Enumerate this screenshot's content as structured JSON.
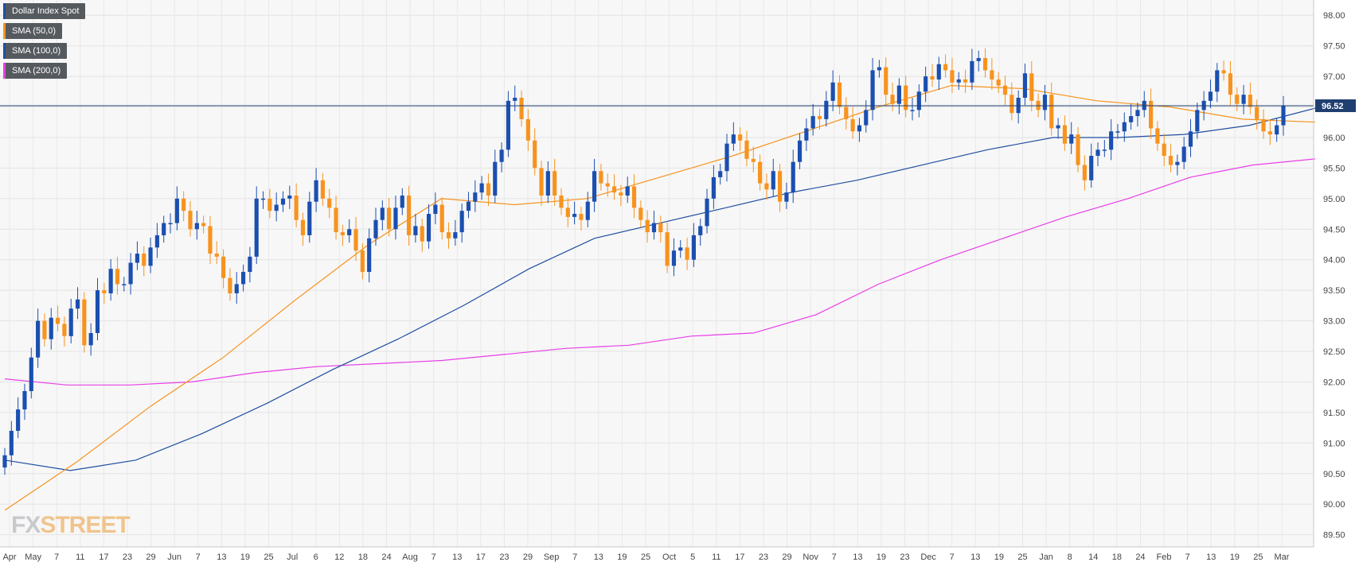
{
  "chart_data": {
    "type": "candlestick",
    "title": "",
    "ylim": [
      89.3,
      98.25
    ],
    "y_ticks": [
      "98.00",
      "97.50",
      "97.00",
      "96.50",
      "96.00",
      "95.50",
      "95.00",
      "94.50",
      "94.00",
      "93.50",
      "93.00",
      "92.50",
      "92.00",
      "91.50",
      "91.00",
      "90.50",
      "90.00",
      "89.50"
    ],
    "x_ticks": [
      "Apr",
      "May",
      "7",
      "11",
      "17",
      "23",
      "29",
      "Jun",
      "7",
      "13",
      "19",
      "25",
      "Jul",
      "6",
      "12",
      "18",
      "24",
      "Aug",
      "7",
      "13",
      "17",
      "23",
      "29",
      "Sep",
      "7",
      "13",
      "19",
      "25",
      "Oct",
      "5",
      "11",
      "17",
      "23",
      "29",
      "Nov",
      "7",
      "13",
      "19",
      "23",
      "Dec",
      "7",
      "13",
      "19",
      "25",
      "Jan",
      "8",
      "14",
      "18",
      "24",
      "Feb",
      "7",
      "13",
      "19",
      "25",
      "Mar"
    ],
    "last_price": 96.52,
    "last_price_label": "96.52",
    "legend": [
      {
        "label": "Dollar Index Spot",
        "color": "#1f4fa0"
      },
      {
        "label": "SMA (50,0)",
        "color": "#f7931e"
      },
      {
        "label": "SMA (100,0)",
        "color": "#1f4fa0"
      },
      {
        "label": "SMA (200,0)",
        "color": "#e83ee8"
      }
    ],
    "colors": {
      "up": "#1b4fb0",
      "down": "#f7931e",
      "sma50": "#f7931e",
      "sma100": "#1f4fa0",
      "sma200": "#e83ee8",
      "price_line": "#1f3f70"
    },
    "close": [
      90.8,
      91.2,
      91.55,
      91.85,
      92.4,
      93.0,
      92.7,
      93.05,
      92.95,
      92.75,
      93.2,
      93.35,
      92.6,
      92.8,
      93.5,
      93.45,
      93.85,
      93.6,
      93.6,
      93.95,
      94.1,
      93.9,
      94.2,
      94.4,
      94.6,
      94.6,
      95.0,
      94.8,
      94.5,
      94.6,
      94.55,
      94.1,
      94.05,
      93.7,
      93.45,
      93.6,
      93.8,
      94.05,
      95.0,
      95.0,
      94.8,
      94.9,
      95.0,
      95.05,
      94.65,
      94.4,
      94.95,
      95.3,
      95.0,
      94.85,
      94.45,
      94.4,
      94.5,
      94.15,
      93.8,
      94.35,
      94.65,
      94.85,
      94.5,
      94.85,
      95.05,
      94.4,
      94.55,
      94.3,
      94.75,
      94.9,
      94.45,
      94.35,
      94.45,
      94.8,
      94.95,
      95.1,
      95.25,
      95.05,
      95.6,
      95.8,
      96.6,
      96.65,
      96.3,
      95.95,
      95.5,
      95.05,
      95.45,
      95.05,
      94.85,
      94.7,
      94.75,
      94.65,
      94.95,
      95.45,
      95.25,
      95.2,
      95.1,
      95.05,
      95.2,
      94.85,
      94.65,
      94.45,
      94.6,
      94.45,
      93.9,
      94.15,
      94.2,
      94.0,
      94.4,
      94.55,
      95.0,
      95.35,
      95.45,
      95.9,
      96.05,
      95.95,
      95.65,
      95.6,
      95.25,
      95.15,
      95.45,
      94.95,
      95.1,
      95.6,
      95.95,
      96.15,
      96.35,
      96.3,
      96.6,
      96.9,
      96.5,
      96.3,
      96.1,
      96.2,
      96.45,
      97.1,
      97.15,
      96.7,
      96.55,
      96.85,
      96.45,
      96.45,
      96.75,
      97.0,
      96.95,
      97.2,
      97.1,
      96.9,
      96.95,
      96.9,
      97.25,
      97.3,
      97.1,
      96.95,
      96.85,
      96.7,
      96.4,
      96.65,
      97.05,
      96.6,
      96.45,
      96.7,
      96.15,
      96.2,
      95.9,
      96.05,
      95.55,
      95.3,
      95.7,
      95.8,
      95.8,
      96.1,
      96.1,
      96.25,
      96.35,
      96.45,
      96.6,
      96.15,
      95.9,
      95.7,
      95.55,
      95.6,
      95.85,
      96.1,
      96.45,
      96.6,
      96.75,
      97.1,
      97.05,
      96.7,
      96.55,
      96.7,
      96.5,
      96.3,
      96.1,
      96.05,
      96.2,
      96.52
    ],
    "sma50": [
      89.9,
      90.7,
      91.6,
      92.4,
      93.35,
      94.25,
      95.0,
      94.9,
      95.0,
      95.35,
      95.7,
      96.1,
      96.5,
      96.85,
      96.8,
      96.6,
      96.5,
      96.3,
      96.25
    ],
    "sma100": [
      90.72,
      90.55,
      90.72,
      91.15,
      91.65,
      92.2,
      92.7,
      93.25,
      93.85,
      94.35,
      94.6,
      94.85,
      95.1,
      95.3,
      95.55,
      95.8,
      96.0,
      96.0,
      96.05,
      96.2,
      96.48
    ],
    "sma200": [
      92.05,
      91.95,
      91.95,
      92.0,
      92.15,
      92.25,
      92.3,
      92.35,
      92.45,
      92.55,
      92.6,
      92.75,
      92.8,
      93.1,
      93.6,
      94.0,
      94.35,
      94.7,
      95.0,
      95.35,
      95.55,
      95.65
    ]
  }
}
